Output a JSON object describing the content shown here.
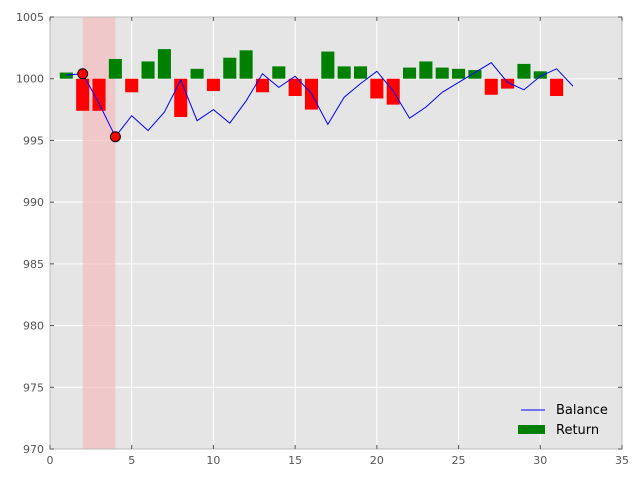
{
  "chart_data": {
    "type": "bar",
    "title": "",
    "xlabel": "",
    "ylabel": "",
    "xlim": [
      0,
      35
    ],
    "ylim": [
      970,
      1005
    ],
    "grid": true,
    "legend_position": "bottom-right",
    "x_ticks": [
      "0",
      "5",
      "10",
      "15",
      "20",
      "25",
      "30",
      "35"
    ],
    "y_ticks": [
      "970",
      "975",
      "980",
      "985",
      "990",
      "995",
      "1000",
      "1005"
    ],
    "highlight_span": {
      "x": [
        2,
        4
      ],
      "color": "#f5b5b5"
    },
    "baseline": 1000,
    "series": [
      {
        "name": "Balance",
        "kind": "line",
        "color": "#0000ff",
        "x": [
          1,
          2,
          3,
          4,
          5,
          6,
          7,
          8,
          9,
          10,
          11,
          12,
          13,
          14,
          15,
          16,
          17,
          18,
          19,
          20,
          21,
          22,
          23,
          24,
          25,
          26,
          27,
          28,
          29,
          30,
          31,
          32
        ],
        "values": [
          1000.3,
          1000.4,
          998.0,
          995.3,
          997.0,
          995.8,
          997.3,
          999.9,
          996.6,
          997.5,
          996.4,
          998.2,
          1000.4,
          999.3,
          1000.2,
          998.8,
          996.3,
          998.5,
          999.6,
          1000.6,
          999.0,
          996.8,
          997.7,
          998.9,
          999.7,
          1000.5,
          1001.3,
          999.7,
          999.1,
          1000.2,
          1000.8,
          999.4
        ]
      },
      {
        "name": "Return",
        "kind": "bar",
        "color": "#008000",
        "negative_color": "#ff0000",
        "x": [
          1,
          2,
          3,
          4,
          5,
          6,
          7,
          8,
          9,
          10,
          11,
          12,
          13,
          14,
          15,
          16,
          17,
          18,
          19,
          20,
          21,
          22,
          23,
          24,
          25,
          26,
          27,
          28,
          29,
          30,
          31,
          32
        ],
        "values": [
          0.5,
          -2.6,
          -2.6,
          1.6,
          -1.1,
          1.4,
          2.4,
          -3.1,
          0.8,
          -1.0,
          1.7,
          2.3,
          -1.1,
          1.0,
          -1.4,
          -2.5,
          2.2,
          1.0,
          1.0,
          -1.6,
          -2.1,
          0.9,
          1.4,
          0.9,
          0.8,
          0.7,
          -1.3,
          -0.8,
          1.2,
          0.6,
          -1.4,
          0.0
        ]
      }
    ],
    "markers": {
      "color": "#ff0000",
      "points": [
        {
          "x": 2,
          "y": 1000.4
        },
        {
          "x": 4,
          "y": 995.3
        }
      ]
    }
  }
}
